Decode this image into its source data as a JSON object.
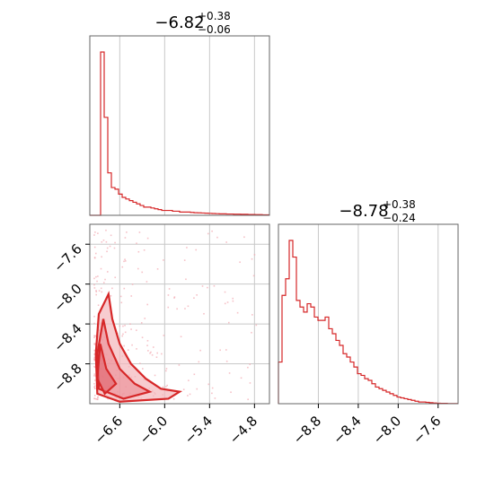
{
  "chart_data": [
    {
      "panel": "top-left",
      "type": "histogram",
      "title_main": "−6.82",
      "title_sup": "+0.38",
      "title_sub": "−0.06",
      "xlim": [
        -7.0,
        -4.6
      ],
      "grid": true,
      "bins": {
        "edges_start": -7.0,
        "edges_step": 0.048,
        "values": [
          0,
          0,
          0,
          1.0,
          0.6,
          0.26,
          0.17,
          0.16,
          0.13,
          0.11,
          0.1,
          0.09,
          0.08,
          0.07,
          0.06,
          0.05,
          0.05,
          0.045,
          0.04,
          0.035,
          0.03,
          0.03,
          0.03,
          0.025,
          0.025,
          0.02,
          0.02,
          0.02,
          0.018,
          0.016,
          0.015,
          0.014,
          0.013,
          0.012,
          0.011,
          0.01,
          0.009,
          0.009,
          0.008,
          0.008,
          0.007,
          0.007,
          0.006,
          0.006,
          0.005,
          0.005,
          0.004,
          0.004,
          0.003,
          0.003
        ]
      },
      "color": "#d62728"
    },
    {
      "panel": "bottom-right",
      "type": "histogram",
      "title_main": "−8.78",
      "title_sup": "+0.38",
      "title_sub": "−0.24",
      "xlim": [
        -9.2,
        -7.4
      ],
      "grid": true,
      "x_ticks": [
        "−8.8",
        "−8.4",
        "−8.0",
        "−7.6"
      ],
      "x_tick_values": [
        -8.8,
        -8.4,
        -8.0,
        -7.6
      ],
      "bins": {
        "edges_start": -9.2,
        "edges_step": 0.036,
        "values": [
          0.25,
          0.65,
          0.75,
          0.98,
          0.88,
          0.62,
          0.58,
          0.55,
          0.6,
          0.58,
          0.52,
          0.5,
          0.5,
          0.52,
          0.45,
          0.42,
          0.38,
          0.35,
          0.3,
          0.28,
          0.25,
          0.22,
          0.18,
          0.17,
          0.15,
          0.14,
          0.12,
          0.1,
          0.09,
          0.08,
          0.07,
          0.06,
          0.05,
          0.04,
          0.035,
          0.03,
          0.025,
          0.02,
          0.015,
          0.01,
          0.01,
          0.008,
          0.006,
          0.004,
          0.003,
          0.002,
          0.002,
          0.001,
          0.001,
          0.001
        ]
      },
      "color": "#d62728"
    },
    {
      "panel": "bottom-left",
      "type": "contour",
      "xlim": [
        -7.0,
        -4.6
      ],
      "ylim": [
        -9.2,
        -7.4
      ],
      "grid": true,
      "x_ticks": [
        "−6.6",
        "−6.0",
        "−5.4",
        "−4.8"
      ],
      "x_tick_values": [
        -6.6,
        -6.0,
        -5.4,
        -4.8
      ],
      "y_ticks": [
        "−7.6",
        "−8.0",
        "−8.4",
        "−8.8"
      ],
      "y_tick_values": [
        -7.6,
        -8.0,
        -8.4,
        -8.8
      ],
      "contours": [
        {
          "level": "outer",
          "points": [
            [
              -6.75,
              -8.1
            ],
            [
              -6.7,
              -8.35
            ],
            [
              -6.6,
              -8.6
            ],
            [
              -6.45,
              -8.8
            ],
            [
              -6.25,
              -8.95
            ],
            [
              -6.05,
              -9.05
            ],
            [
              -5.8,
              -9.08
            ],
            [
              -5.95,
              -9.15
            ],
            [
              -6.6,
              -9.18
            ],
            [
              -6.9,
              -9.1
            ],
            [
              -6.92,
              -8.7
            ],
            [
              -6.88,
              -8.3
            ]
          ]
        },
        {
          "level": "middle",
          "points": [
            [
              -6.82,
              -8.35
            ],
            [
              -6.75,
              -8.6
            ],
            [
              -6.6,
              -8.85
            ],
            [
              -6.4,
              -9.0
            ],
            [
              -6.2,
              -9.08
            ],
            [
              -6.55,
              -9.15
            ],
            [
              -6.88,
              -9.05
            ],
            [
              -6.9,
              -8.7
            ]
          ]
        },
        {
          "level": "inner",
          "points": [
            [
              -6.86,
              -8.6
            ],
            [
              -6.78,
              -8.85
            ],
            [
              -6.65,
              -9.0
            ],
            [
              -6.8,
              -9.1
            ],
            [
              -6.9,
              -8.95
            ]
          ]
        }
      ],
      "color": "#d62728",
      "fill_color": "#f4b6bb"
    }
  ]
}
